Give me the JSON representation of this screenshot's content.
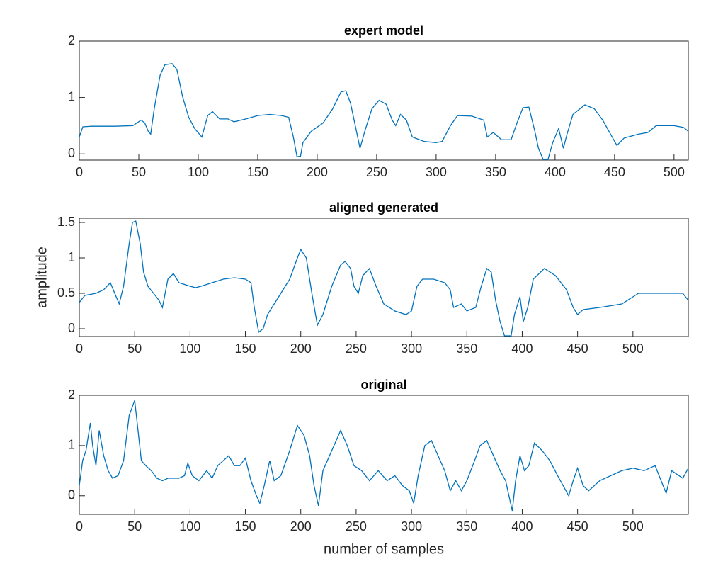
{
  "chart_data": [
    {
      "type": "line",
      "title": "expert model",
      "color": "#0072bd",
      "grid": false,
      "xlim": [
        0,
        512
      ],
      "ylim": [
        -0.11,
        2
      ],
      "xticks": [
        0,
        50,
        100,
        150,
        200,
        250,
        300,
        350,
        400,
        450,
        500
      ],
      "yticks": [
        0,
        1,
        2
      ],
      "x": [
        0,
        3,
        10,
        30,
        45,
        52,
        55,
        58,
        60,
        63,
        68,
        72,
        78,
        82,
        87,
        92,
        97,
        103,
        108,
        112,
        118,
        125,
        130,
        140,
        150,
        160,
        170,
        176,
        180,
        183,
        186,
        188,
        195,
        205,
        213,
        220,
        224,
        228,
        233,
        236,
        240,
        246,
        252,
        258,
        263,
        266,
        270,
        275,
        280,
        290,
        300,
        305,
        312,
        318,
        330,
        340,
        343,
        348,
        355,
        363,
        368,
        373,
        378,
        383,
        386,
        390,
        394,
        398,
        403,
        407,
        410,
        415,
        425,
        433,
        440,
        448,
        452,
        458,
        470,
        478,
        485,
        500,
        508,
        512
      ],
      "values": [
        0.3,
        0.48,
        0.49,
        0.49,
        0.5,
        0.6,
        0.55,
        0.4,
        0.35,
        0.8,
        1.4,
        1.58,
        1.6,
        1.5,
        1.0,
        0.65,
        0.45,
        0.3,
        0.68,
        0.75,
        0.62,
        0.62,
        0.57,
        0.62,
        0.68,
        0.7,
        0.68,
        0.65,
        0.3,
        -0.05,
        -0.04,
        0.2,
        0.4,
        0.55,
        0.8,
        1.1,
        1.12,
        0.9,
        0.4,
        0.1,
        0.4,
        0.8,
        0.95,
        0.88,
        0.6,
        0.5,
        0.7,
        0.6,
        0.3,
        0.22,
        0.2,
        0.22,
        0.5,
        0.68,
        0.67,
        0.6,
        0.3,
        0.38,
        0.25,
        0.25,
        0.55,
        0.82,
        0.83,
        0.4,
        0.1,
        -0.1,
        -0.1,
        0.2,
        0.45,
        0.1,
        0.35,
        0.7,
        0.87,
        0.8,
        0.6,
        0.3,
        0.15,
        0.28,
        0.35,
        0.38,
        0.5,
        0.5,
        0.47,
        0.4
      ]
    },
    {
      "type": "line",
      "title": "aligned generated",
      "ylabel": "amplitude",
      "color": "#0072bd",
      "grid": false,
      "xlim": [
        0,
        550
      ],
      "ylim": [
        -0.11,
        1.56
      ],
      "xticks": [
        0,
        50,
        100,
        150,
        200,
        250,
        300,
        350,
        400,
        450,
        500
      ],
      "yticks": [
        0,
        0.5,
        1,
        1.5
      ],
      "x": [
        0,
        5,
        15,
        22,
        28,
        32,
        36,
        40,
        45,
        48,
        51,
        55,
        58,
        62,
        67,
        72,
        75,
        80,
        85,
        90,
        100,
        105,
        110,
        120,
        130,
        140,
        150,
        155,
        158,
        162,
        166,
        170,
        180,
        190,
        197,
        200,
        205,
        210,
        215,
        220,
        228,
        236,
        240,
        245,
        248,
        252,
        256,
        262,
        268,
        275,
        285,
        295,
        300,
        305,
        310,
        320,
        330,
        335,
        338,
        345,
        350,
        358,
        363,
        368,
        372,
        376,
        380,
        384,
        390,
        393,
        398,
        401,
        405,
        410,
        420,
        430,
        440,
        446,
        450,
        455,
        470,
        490,
        500,
        505,
        530,
        545,
        550
      ],
      "values": [
        0.37,
        0.47,
        0.5,
        0.55,
        0.65,
        0.5,
        0.35,
        0.6,
        1.2,
        1.5,
        1.52,
        1.2,
        0.8,
        0.6,
        0.5,
        0.4,
        0.3,
        0.7,
        0.78,
        0.65,
        0.6,
        0.58,
        0.6,
        0.65,
        0.7,
        0.72,
        0.7,
        0.65,
        0.3,
        -0.05,
        0.0,
        0.2,
        0.45,
        0.7,
        1.0,
        1.12,
        1.0,
        0.5,
        0.05,
        0.2,
        0.6,
        0.9,
        0.95,
        0.85,
        0.6,
        0.5,
        0.75,
        0.85,
        0.6,
        0.35,
        0.25,
        0.2,
        0.25,
        0.6,
        0.7,
        0.7,
        0.65,
        0.55,
        0.3,
        0.35,
        0.25,
        0.3,
        0.6,
        0.85,
        0.8,
        0.4,
        0.1,
        -0.1,
        -0.1,
        0.2,
        0.45,
        0.1,
        0.3,
        0.7,
        0.85,
        0.75,
        0.55,
        0.3,
        0.2,
        0.27,
        0.3,
        0.35,
        0.45,
        0.5,
        0.5,
        0.5,
        0.4
      ]
    },
    {
      "type": "line",
      "title": "original",
      "xlabel": "number of samples",
      "color": "#0072bd",
      "grid": false,
      "xlim": [
        0,
        550
      ],
      "ylim": [
        -0.37,
        2
      ],
      "xticks": [
        0,
        50,
        100,
        150,
        200,
        250,
        300,
        350,
        400,
        450,
        500
      ],
      "yticks": [
        0,
        1,
        2
      ],
      "x": [
        0,
        3,
        6,
        10,
        12,
        15,
        18,
        22,
        26,
        30,
        35,
        40,
        45,
        50,
        53,
        56,
        60,
        65,
        70,
        75,
        80,
        90,
        95,
        98,
        102,
        108,
        115,
        120,
        125,
        130,
        135,
        140,
        145,
        150,
        155,
        160,
        163,
        167,
        172,
        176,
        182,
        190,
        197,
        203,
        208,
        212,
        216,
        220,
        228,
        236,
        242,
        248,
        255,
        262,
        270,
        278,
        285,
        292,
        298,
        302,
        306,
        312,
        318,
        324,
        330,
        335,
        340,
        345,
        350,
        357,
        362,
        368,
        374,
        380,
        385,
        388,
        391,
        394,
        398,
        402,
        406,
        411,
        418,
        425,
        432,
        437,
        442,
        446,
        450,
        455,
        460,
        470,
        480,
        490,
        500,
        510,
        520,
        530,
        535,
        545,
        550
      ],
      "values": [
        0.2,
        0.7,
        0.9,
        1.45,
        1.0,
        0.6,
        1.3,
        0.8,
        0.5,
        0.35,
        0.4,
        0.7,
        1.6,
        1.9,
        1.3,
        0.7,
        0.6,
        0.5,
        0.35,
        0.3,
        0.35,
        0.35,
        0.4,
        0.65,
        0.4,
        0.3,
        0.5,
        0.35,
        0.6,
        0.7,
        0.8,
        0.6,
        0.6,
        0.75,
        0.3,
        0.0,
        -0.15,
        0.2,
        0.7,
        0.3,
        0.4,
        0.9,
        1.4,
        1.2,
        0.8,
        0.2,
        -0.2,
        0.5,
        0.9,
        1.3,
        1.0,
        0.6,
        0.5,
        0.3,
        0.5,
        0.3,
        0.4,
        0.2,
        0.1,
        -0.15,
        0.4,
        1.0,
        1.1,
        0.8,
        0.5,
        0.1,
        0.3,
        0.1,
        0.3,
        0.7,
        1.0,
        1.1,
        0.8,
        0.5,
        0.3,
        0.0,
        -0.3,
        0.3,
        0.8,
        0.5,
        0.6,
        1.05,
        0.9,
        0.7,
        0.4,
        0.2,
        0.0,
        0.3,
        0.55,
        0.2,
        0.1,
        0.3,
        0.4,
        0.5,
        0.55,
        0.5,
        0.6,
        0.05,
        0.5,
        0.35,
        0.55
      ]
    }
  ]
}
